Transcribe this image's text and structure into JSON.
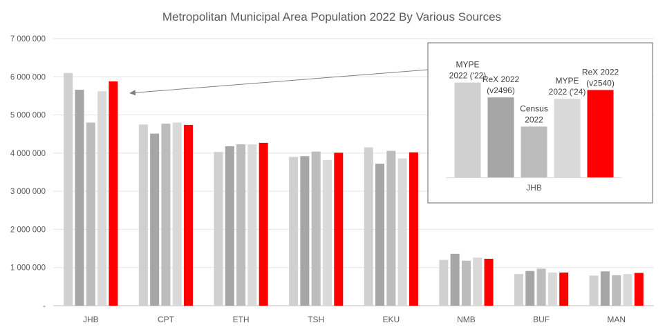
{
  "chart_data": [
    {
      "type": "bar",
      "title": "Metropolitan Municipal Area Population 2022 By Various Sources",
      "categories": [
        "JHB",
        "CPT",
        "ETH",
        "TSH",
        "EKU",
        "NMB",
        "BUF",
        "MAN"
      ],
      "series": [
        {
          "color": "#d0d0d0",
          "values": [
            6100000,
            4750000,
            4030000,
            3900000,
            4150000,
            1200000,
            830000,
            790000
          ]
        },
        {
          "color": "#a6a6a6",
          "values": [
            5660000,
            4510000,
            4180000,
            3920000,
            3720000,
            1360000,
            910000,
            900000
          ]
        },
        {
          "color": "#bcbcbc",
          "values": [
            4800000,
            4770000,
            4230000,
            4040000,
            4060000,
            1180000,
            970000,
            800000
          ]
        },
        {
          "color": "#d9d9d9",
          "values": [
            5620000,
            4800000,
            4230000,
            3820000,
            3860000,
            1260000,
            870000,
            830000
          ]
        },
        {
          "color": "#ff0000",
          "values": [
            5880000,
            4740000,
            4270000,
            4010000,
            4020000,
            1230000,
            870000,
            860000
          ]
        }
      ],
      "ylim": [
        0,
        7000000
      ],
      "yticks": [
        0,
        1000000,
        2000000,
        3000000,
        4000000,
        5000000,
        6000000,
        7000000
      ],
      "ytick_labels": [
        "-",
        "1 000 000",
        "2 000 000",
        "3 000 000",
        "4 000 000",
        "5 000 000",
        "6 000 000",
        "7 000 000"
      ],
      "grid": true,
      "legend": "none"
    },
    {
      "type": "bar",
      "inset_of": "JHB",
      "categories": [
        "JHB"
      ],
      "series": [
        {
          "name": [
            "MYPE",
            "2022 ('22)"
          ],
          "color": "#d0d0d0",
          "values": [
            6100000
          ]
        },
        {
          "name": [
            "ReX 2022",
            "(v2496)"
          ],
          "color": "#a6a6a6",
          "values": [
            5660000
          ]
        },
        {
          "name": [
            "Census",
            "2022"
          ],
          "color": "#bcbcbc",
          "values": [
            4800000
          ]
        },
        {
          "name": [
            "MYPE",
            "2022 ('24)"
          ],
          "color": "#d9d9d9",
          "values": [
            5620000
          ]
        },
        {
          "name": [
            "ReX 2022",
            "(v2540)"
          ],
          "color": "#ff0000",
          "values": [
            5880000
          ]
        }
      ],
      "ylim": [
        3300000,
        6500000
      ]
    }
  ]
}
